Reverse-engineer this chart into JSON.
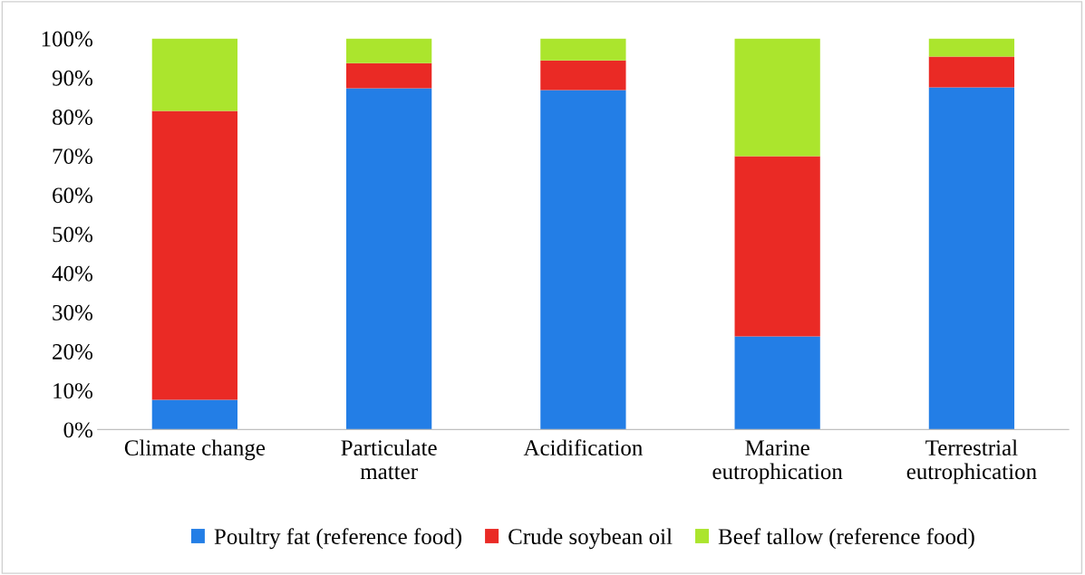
{
  "chart_data": {
    "type": "bar",
    "stacked": true,
    "categories": [
      "Climate change",
      "Particulate\nmatter",
      "Acidification",
      "Marine\neutrophication",
      "Terrestrial\neutrophication"
    ],
    "series": [
      {
        "name": "Poultry fat (reference food)",
        "color": "#237ee6",
        "values": [
          7.6,
          87.3,
          86.8,
          23.8,
          87.5
        ]
      },
      {
        "name": "Crude soybean oil",
        "color": "#ea2a25",
        "values": [
          73.9,
          6.4,
          7.6,
          46.1,
          7.9
        ]
      },
      {
        "name": "Beef tallow (reference food)",
        "color": "#abe52d",
        "values": [
          18.5,
          6.3,
          5.6,
          30.1,
          4.6
        ]
      }
    ],
    "ylim": [
      0,
      100
    ],
    "yticks": [
      {
        "value": 0,
        "label": "0%"
      },
      {
        "value": 10,
        "label": "10%"
      },
      {
        "value": 20,
        "label": "20%"
      },
      {
        "value": 30,
        "label": "30%"
      },
      {
        "value": 40,
        "label": "40%"
      },
      {
        "value": 50,
        "label": "50%"
      },
      {
        "value": 60,
        "label": "60%"
      },
      {
        "value": 70,
        "label": "70%"
      },
      {
        "value": 80,
        "label": "80%"
      },
      {
        "value": 90,
        "label": "90%"
      },
      {
        "value": 100,
        "label": "100%"
      }
    ],
    "grid": false,
    "legend": "bottom"
  }
}
